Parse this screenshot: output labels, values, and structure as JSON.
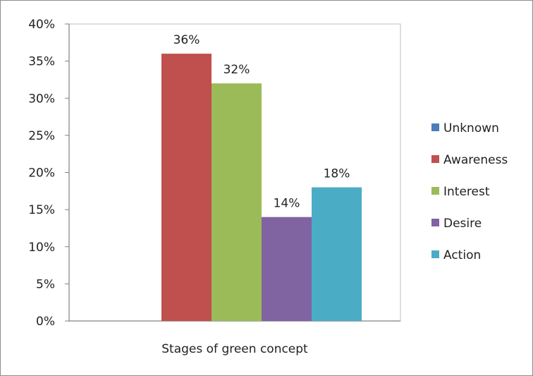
{
  "chart_data": {
    "type": "bar",
    "categories": [
      "Stages of green concept"
    ],
    "xlabel": "Stages of green concept",
    "ylabel": "",
    "ylim": [
      0,
      40
    ],
    "y_tick_step": 5,
    "y_tick_suffix": "%",
    "grid": false,
    "legend_position": "right",
    "series": [
      {
        "name": "Unknown",
        "values": [
          0
        ],
        "color": "#4A7EBB",
        "label": ""
      },
      {
        "name": "Awareness",
        "values": [
          36
        ],
        "color": "#C0504D",
        "label": "36%"
      },
      {
        "name": "Interest",
        "values": [
          32
        ],
        "color": "#9BBB59",
        "label": "32%"
      },
      {
        "name": "Desire",
        "values": [
          14
        ],
        "color": "#8064A2",
        "label": "14%"
      },
      {
        "name": "Action",
        "values": [
          18
        ],
        "color": "#4BACC6",
        "label": "18%"
      }
    ]
  }
}
